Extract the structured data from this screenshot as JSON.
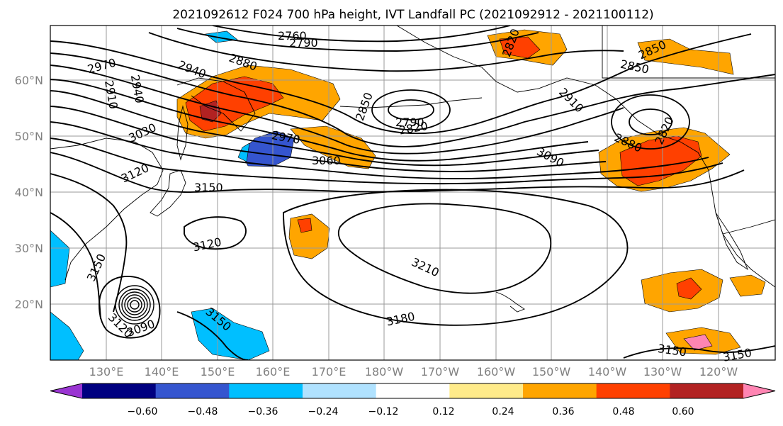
{
  "title": "2021092612 F024 700 hPa height, IVT Landfall PC (2021092912 - 2021100112)",
  "lat_labels": [
    "60°N",
    "50°N",
    "40°N",
    "30°N",
    "20°N"
  ],
  "lon_labels": [
    "130°E",
    "140°E",
    "150°E",
    "160°E",
    "170°E",
    "180°W",
    "170°W",
    "160°W",
    "150°W",
    "140°W",
    "130°W",
    "120°W"
  ],
  "contour_labels": [
    "2760",
    "2790",
    "2820",
    "2850",
    "2880",
    "2940",
    "2970",
    "2910",
    "2940",
    "3030",
    "3060",
    "3090",
    "3120",
    "3150",
    "3180",
    "3210",
    "2790",
    "2820",
    "2850",
    "2910",
    "2850",
    "2880",
    "2970",
    "3090",
    "3120",
    "3150",
    "3150",
    "3120",
    "3150",
    "3150",
    "2820"
  ],
  "colorbar": {
    "ticks": [
      "−0.60",
      "−0.48",
      "−0.36",
      "−0.24",
      "−0.12",
      "0.12",
      "0.24",
      "0.36",
      "0.48",
      "0.60"
    ],
    "colors": [
      "#9a35d2",
      "#000080",
      "#3555cf",
      "#00bfff",
      "#b0e2ff",
      "#ffffff",
      "#ffeb8a",
      "#ffa500",
      "#ff4000",
      "#b22222",
      "#ff85b3"
    ]
  }
}
